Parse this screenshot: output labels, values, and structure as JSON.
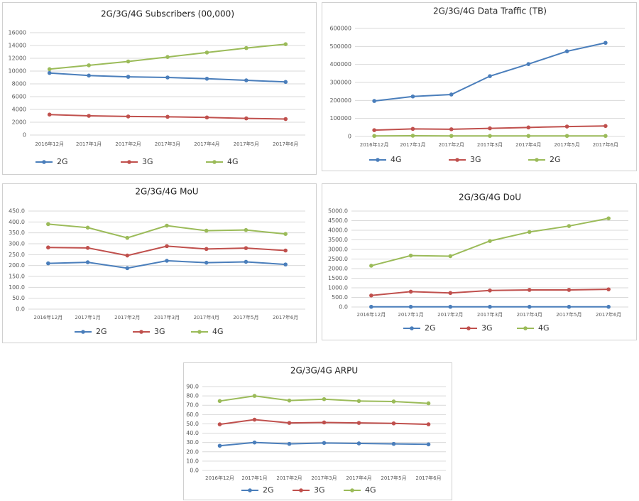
{
  "chart_data": [
    {
      "type": "line",
      "title": "2G/3G/4G Subscribers (00,000)",
      "categories": [
        "2016年12月",
        "2017年1月",
        "2017年2月",
        "2017年3月",
        "2017年4月",
        "2017年5月",
        "2017年6月"
      ],
      "series": [
        {
          "name": "2G",
          "color": "#4a7ebb",
          "values": [
            9700,
            9300,
            9100,
            9000,
            8800,
            8550,
            8300
          ]
        },
        {
          "name": "3G",
          "color": "#c0504d",
          "values": [
            3200,
            3000,
            2900,
            2850,
            2750,
            2600,
            2500
          ]
        },
        {
          "name": "4G",
          "color": "#9bbb59",
          "values": [
            10300,
            10900,
            11500,
            12200,
            12900,
            13600,
            14200
          ]
        }
      ],
      "ylim": [
        0,
        16000
      ],
      "yticks": [
        0,
        2000,
        4000,
        6000,
        8000,
        10000,
        12000,
        14000,
        16000
      ],
      "grid": true,
      "legend": "bottom"
    },
    {
      "type": "line",
      "title": "2G/3G/4G Data Traffic (TB)",
      "categories": [
        "2016年12月",
        "2017年1月",
        "2017年2月",
        "2017年3月",
        "2017年4月",
        "2017年5月",
        "2017年6月"
      ],
      "series": [
        {
          "name": "4G",
          "color": "#4a7ebb",
          "values": [
            197000,
            222000,
            233000,
            335000,
            402000,
            473000,
            520000
          ]
        },
        {
          "name": "3G",
          "color": "#c0504d",
          "values": [
            35000,
            42000,
            40000,
            45000,
            50000,
            55000,
            58000
          ]
        },
        {
          "name": "2G",
          "color": "#9bbb59",
          "values": [
            3000,
            4000,
            3000,
            3000,
            3000,
            3000,
            3000
          ]
        }
      ],
      "ylim": [
        0,
        600000
      ],
      "yticks": [
        0,
        100000,
        200000,
        300000,
        400000,
        500000,
        600000
      ],
      "grid": true,
      "legend": "bottom"
    },
    {
      "type": "line",
      "title": "2G/3G/4G MoU",
      "categories": [
        "2016年12月",
        "2017年1月",
        "2017年2月",
        "2017年3月",
        "2017年4月",
        "2017年5月",
        "2017年6月"
      ],
      "series": [
        {
          "name": "2G",
          "color": "#4a7ebb",
          "values": [
            210,
            215,
            188,
            222,
            213,
            217,
            205
          ]
        },
        {
          "name": "3G",
          "color": "#c0504d",
          "values": [
            283,
            281,
            246,
            289,
            276,
            280,
            269
          ]
        },
        {
          "name": "4G",
          "color": "#9bbb59",
          "values": [
            390,
            374,
            327,
            383,
            360,
            363,
            345
          ]
        }
      ],
      "ylim": [
        0,
        450
      ],
      "yticks": [
        {
          "value": 0,
          "label": "0.0"
        },
        {
          "value": 50,
          "label": "50.0"
        },
        {
          "value": 100,
          "label": "100.0"
        },
        {
          "value": 150,
          "label": "150.0"
        },
        {
          "value": 200,
          "label": "200.0"
        },
        {
          "value": 250,
          "label": "250.0"
        },
        {
          "value": 300,
          "label": "300.0"
        },
        {
          "value": 350,
          "label": "350.0"
        },
        {
          "value": 400,
          "label": "400.0"
        },
        {
          "value": 450,
          "label": "450.0"
        }
      ],
      "grid": true,
      "legend": "bottom"
    },
    {
      "type": "line",
      "title": "2G/3G/4G DoU",
      "categories": [
        "2016年12月",
        "2017年1月",
        "2017年2月",
        "2017年3月",
        "2017年4月",
        "2017年5月",
        "2017年6月"
      ],
      "series": [
        {
          "name": "2G",
          "color": "#4a7ebb",
          "values": [
            10,
            10,
            10,
            10,
            10,
            10,
            10
          ]
        },
        {
          "name": "3G",
          "color": "#c0504d",
          "values": [
            600,
            800,
            730,
            860,
            890,
            890,
            920
          ]
        },
        {
          "name": "4G",
          "color": "#9bbb59",
          "values": [
            2150,
            2680,
            2650,
            3440,
            3910,
            4220,
            4620
          ]
        }
      ],
      "ylim": [
        0,
        5000
      ],
      "yticks": [
        {
          "value": 0,
          "label": "0.0"
        },
        {
          "value": 500,
          "label": "500.0"
        },
        {
          "value": 1000,
          "label": "1000.0"
        },
        {
          "value": 1500,
          "label": "1500.0"
        },
        {
          "value": 2000,
          "label": "2000.0"
        },
        {
          "value": 2500,
          "label": "2500.0"
        },
        {
          "value": 3000,
          "label": "3000.0"
        },
        {
          "value": 3500,
          "label": "3500.0"
        },
        {
          "value": 4000,
          "label": "4000.0"
        },
        {
          "value": 4500,
          "label": "4500.0"
        },
        {
          "value": 5000,
          "label": "5000.0"
        }
      ],
      "grid": true,
      "legend": "bottom"
    },
    {
      "type": "line",
      "title": "2G/3G/4G ARPU",
      "categories": [
        "2016年12月",
        "2017年1月",
        "2017年2月",
        "2017年3月",
        "2017年4月",
        "2017年5月",
        "2017年6月"
      ],
      "series": [
        {
          "name": "2G",
          "color": "#4a7ebb",
          "values": [
            26.5,
            30,
            28.5,
            29.5,
            29,
            28.5,
            28
          ]
        },
        {
          "name": "3G",
          "color": "#c0504d",
          "values": [
            49.5,
            54.5,
            51,
            51.5,
            51,
            50.5,
            49.5
          ]
        },
        {
          "name": "4G",
          "color": "#9bbb59",
          "values": [
            74.5,
            80,
            75,
            76.5,
            74.5,
            74,
            72
          ]
        }
      ],
      "ylim": [
        0,
        90
      ],
      "yticks": [
        {
          "value": 0,
          "label": "0.0"
        },
        {
          "value": 10,
          "label": "10.0"
        },
        {
          "value": 20,
          "label": "20.0"
        },
        {
          "value": 30,
          "label": "30.0"
        },
        {
          "value": 40,
          "label": "40.0"
        },
        {
          "value": 50,
          "label": "50.0"
        },
        {
          "value": 60,
          "label": "60.0"
        },
        {
          "value": 70,
          "label": "70.0"
        },
        {
          "value": 80,
          "label": "80.0"
        },
        {
          "value": 90,
          "label": "90.0"
        }
      ],
      "grid": true,
      "legend": "bottom"
    }
  ]
}
